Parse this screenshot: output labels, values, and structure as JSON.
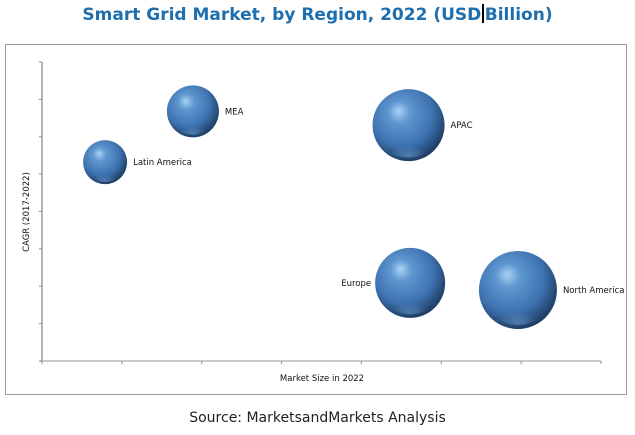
{
  "chart_data": {
    "type": "scatter",
    "subtype": "bubble",
    "title_part1": "Smart Grid Market, by Region, 2022 (USD",
    "title_part2": "Billion)",
    "xlabel": "Market Size in 2022",
    "ylabel": "CAGR (2017-2022)",
    "xlim": [
      0,
      7
    ],
    "ylim": [
      0,
      8
    ],
    "x_ticks": 7,
    "y_ticks": 8,
    "grid": false,
    "tick_labels_shown": false,
    "bubble_color": "#3d72b0",
    "series": [
      {
        "name": "Latin America",
        "x": 0.79,
        "y": 5.32,
        "size": 22,
        "label_side": "right"
      },
      {
        "name": "MEA",
        "x": 1.89,
        "y": 6.68,
        "size": 26,
        "label_side": "right"
      },
      {
        "name": "APAC",
        "x": 4.59,
        "y": 6.31,
        "size": 36,
        "label_side": "right"
      },
      {
        "name": "Europe",
        "x": 4.61,
        "y": 2.09,
        "size": 35,
        "label_side": "left"
      },
      {
        "name": "North America",
        "x": 5.96,
        "y": 1.9,
        "size": 39,
        "label_side": "right"
      }
    ]
  },
  "source": "Source: MarketsandMarkets Analysis"
}
